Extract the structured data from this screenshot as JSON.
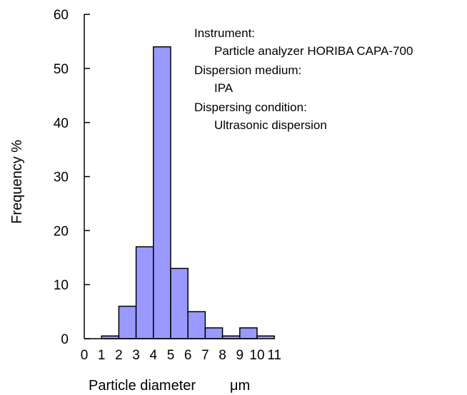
{
  "chart_data": {
    "type": "bar",
    "xlabel": "Particle diameter",
    "xunit": "μm",
    "ylabel": "Frequency %",
    "ylim": [
      0,
      60
    ],
    "yticks": [
      0,
      10,
      20,
      30,
      40,
      50,
      60
    ],
    "xticks": [
      "0",
      "1",
      "2",
      "3",
      "4",
      "5",
      "6",
      "7",
      "8",
      "9",
      "10",
      "11"
    ],
    "bins": [
      {
        "from": 0,
        "to": 1,
        "value": 0
      },
      {
        "from": 1,
        "to": 2,
        "value": 0.5
      },
      {
        "from": 2,
        "to": 3,
        "value": 6
      },
      {
        "from": 3,
        "to": 4,
        "value": 17
      },
      {
        "from": 4,
        "to": 5,
        "value": 54
      },
      {
        "from": 5,
        "to": 6,
        "value": 13
      },
      {
        "from": 6,
        "to": 7,
        "value": 5
      },
      {
        "from": 7,
        "to": 8,
        "value": 2
      },
      {
        "from": 8,
        "to": 9,
        "value": 0.5
      },
      {
        "from": 9,
        "to": 10,
        "value": 2
      },
      {
        "from": 10,
        "to": 11,
        "value": 0.5
      }
    ],
    "bar_color": "#9999ff",
    "bar_edge_color": "#000000",
    "grid": false,
    "annotations": [
      "Instrument:",
      "Particle analyzer HORIBA CAPA-700",
      "Dispersion medium:",
      "IPA",
      "Dispersing condition:",
      "Ultrasonic dispersion"
    ]
  }
}
